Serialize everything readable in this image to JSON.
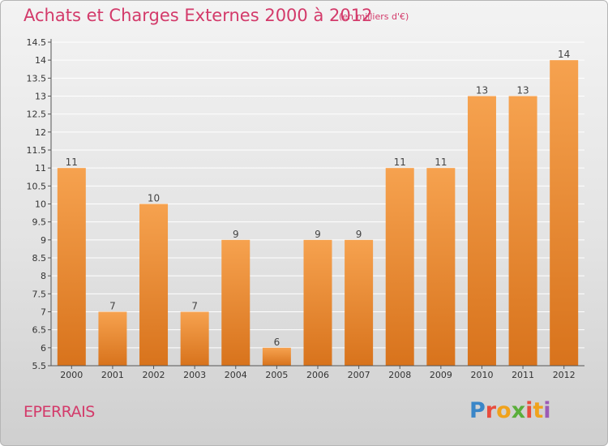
{
  "title": "Achats et Charges Externes 2000 à 2012",
  "unit_note": "(en milliers d'€)",
  "commune": "EPERRAIS",
  "logo": {
    "letters": [
      "P",
      "r",
      "o",
      "x",
      "i",
      "t",
      "i"
    ],
    "colors": [
      "#3a86c8",
      "#e84c3d",
      "#f0a21c",
      "#5aae3a",
      "#e84c3d",
      "#f0a21c",
      "#9c5bb5"
    ]
  },
  "colors": {
    "bar_top": "#f6a24f",
    "bar_bottom": "#d8731c",
    "title": "#d33a6a"
  },
  "chart_data": {
    "type": "bar",
    "categories": [
      "2000",
      "2001",
      "2002",
      "2003",
      "2004",
      "2005",
      "2006",
      "2007",
      "2008",
      "2009",
      "2010",
      "2011",
      "2012"
    ],
    "values": [
      11,
      7,
      10,
      7,
      9,
      6,
      9,
      9,
      11,
      11,
      13,
      13,
      14
    ],
    "data_labels": [
      "11",
      "7",
      "10",
      "7",
      "9",
      "6",
      "9",
      "9",
      "11",
      "11",
      "13",
      "13",
      "14"
    ],
    "yticks": [
      "5.5",
      "6",
      "6.5",
      "7",
      "7.5",
      "8",
      "8.5",
      "9",
      "9.5",
      "10",
      "10.5",
      "11",
      "11.5",
      "12",
      "12.5",
      "13",
      "13.5",
      "14",
      "14.5"
    ],
    "ylim": [
      5.5,
      14.5
    ],
    "grid": true
  }
}
